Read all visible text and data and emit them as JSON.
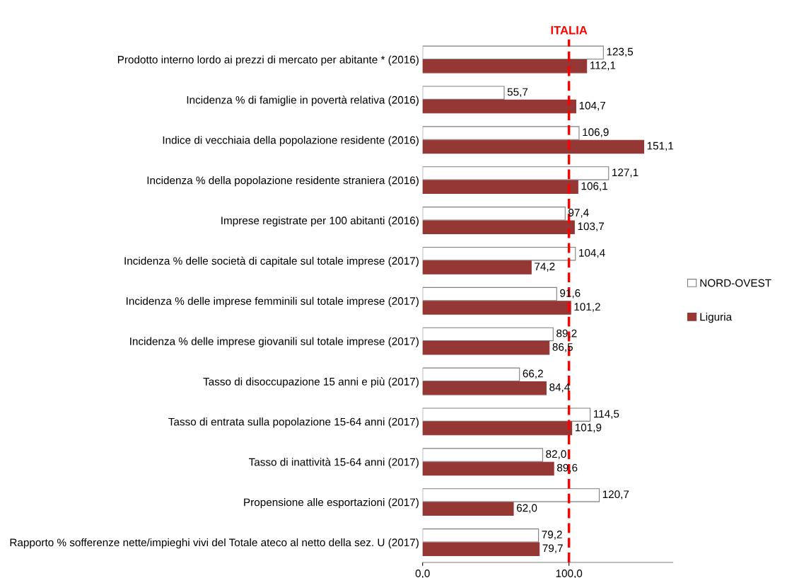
{
  "chart_data": {
    "type": "bar",
    "orientation": "horizontal",
    "categories": [
      "Prodotto interno lordo ai prezzi di mercato per abitante * (2016)",
      "Incidenza % di famiglie in povertà relativa (2016)",
      "Indice di vecchiaia della popolazione residente (2016)",
      "Incidenza % della popolazione residente straniera (2016)",
      "Imprese registrate per 100 abitanti (2016)",
      "Incidenza % delle società di capitale sul totale imprese (2017)",
      "Incidenza % delle imprese femminili sul totale imprese (2017)",
      "Incidenza % delle imprese giovanili sul totale imprese (2017)",
      "Tasso di disoccupazione 15 anni e più (2017)",
      "Tasso di entrata sulla popolazione 15-64 anni (2017)",
      "Tasso di inattività 15-64 anni (2017)",
      "Propensione alle esportazioni (2017)",
      "Rapporto % sofferenze nette/impieghi vivi del Totale ateco al netto della sez. U (2017)"
    ],
    "series": [
      {
        "name": "NORD-OVEST",
        "color": "#ffffff",
        "values": [
          123.5,
          55.7,
          106.9,
          127.1,
          97.4,
          104.4,
          91.6,
          89.2,
          66.2,
          114.5,
          82.0,
          120.7,
          79.2
        ],
        "value_labels": [
          "123,5",
          "55,7",
          "106,9",
          "127,1",
          "97,4",
          "104,4",
          "91,6",
          "89,2",
          "66,2",
          "114,5",
          "82,0",
          "120,7",
          "79,2"
        ]
      },
      {
        "name": "Liguria",
        "color": "#953735",
        "values": [
          112.1,
          104.7,
          151.1,
          106.1,
          103.7,
          74.2,
          101.2,
          86.5,
          84.4,
          101.9,
          89.6,
          62.0,
          79.7
        ],
        "value_labels": [
          "112,1",
          "104,7",
          "151,1",
          "106,1",
          "103,7",
          "74,2",
          "101,2",
          "86,5",
          "84,4",
          "101,9",
          "89,6",
          "62,0",
          "79,7"
        ]
      }
    ],
    "xlim": [
      0,
      171
    ],
    "xticks": [
      {
        "value": 0,
        "label": "0,0"
      },
      {
        "value": 100,
        "label": "100,0"
      }
    ],
    "ref_lines": [
      {
        "axis": "x",
        "value": 100,
        "label": "ITALIA",
        "color": "#ff0000",
        "line_style": "dashed"
      }
    ],
    "legend": "right",
    "grid": false
  }
}
